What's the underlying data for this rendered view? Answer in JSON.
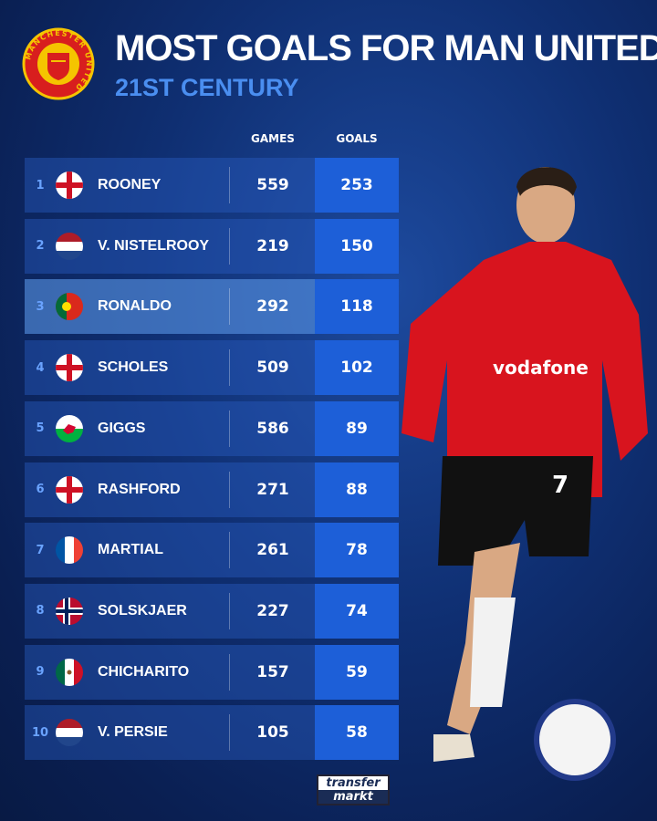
{
  "header": {
    "title": "MOST GOALS FOR MAN UNITED",
    "subtitle": "21ST CENTURY",
    "crest_text": "MANCHESTER UNITED"
  },
  "columns": {
    "games": "GAMES",
    "goals": "GOALS"
  },
  "colors": {
    "accent": "#1d5fd8",
    "subtitle": "#4a8ef0",
    "background": "#0f2f72"
  },
  "chart_data": {
    "type": "table",
    "title": "MOST GOALS FOR MAN UNITED",
    "subtitle": "21ST CENTURY",
    "columns": [
      "GAMES",
      "GOALS"
    ],
    "rows": [
      {
        "rank": "1",
        "flag": "england",
        "name": "ROONEY",
        "games": "559",
        "goals": "253"
      },
      {
        "rank": "2",
        "flag": "netherlands",
        "name": "V. NISTELROOY",
        "games": "219",
        "goals": "150"
      },
      {
        "rank": "3",
        "flag": "portugal",
        "name": "RONALDO",
        "games": "292",
        "goals": "118",
        "highlighted": true
      },
      {
        "rank": "4",
        "flag": "england",
        "name": "SCHOLES",
        "games": "509",
        "goals": "102"
      },
      {
        "rank": "5",
        "flag": "wales",
        "name": "GIGGS",
        "games": "586",
        "goals": "89"
      },
      {
        "rank": "6",
        "flag": "england",
        "name": "RASHFORD",
        "games": "271",
        "goals": "88"
      },
      {
        "rank": "7",
        "flag": "france",
        "name": "MARTIAL",
        "games": "261",
        "goals": "78"
      },
      {
        "rank": "8",
        "flag": "norway",
        "name": "SOLSKJAER",
        "games": "227",
        "goals": "74"
      },
      {
        "rank": "9",
        "flag": "mexico",
        "name": "CHICHARITO",
        "games": "157",
        "goals": "59"
      },
      {
        "rank": "10",
        "flag": "netherlands",
        "name": "V. PERSIE",
        "games": "105",
        "goals": "58"
      }
    ]
  },
  "player_photo": {
    "shirt_sponsor": "vodafone",
    "shirt_number": "7"
  },
  "footer": {
    "logo_line1": "transfer",
    "logo_line2": "markt"
  }
}
